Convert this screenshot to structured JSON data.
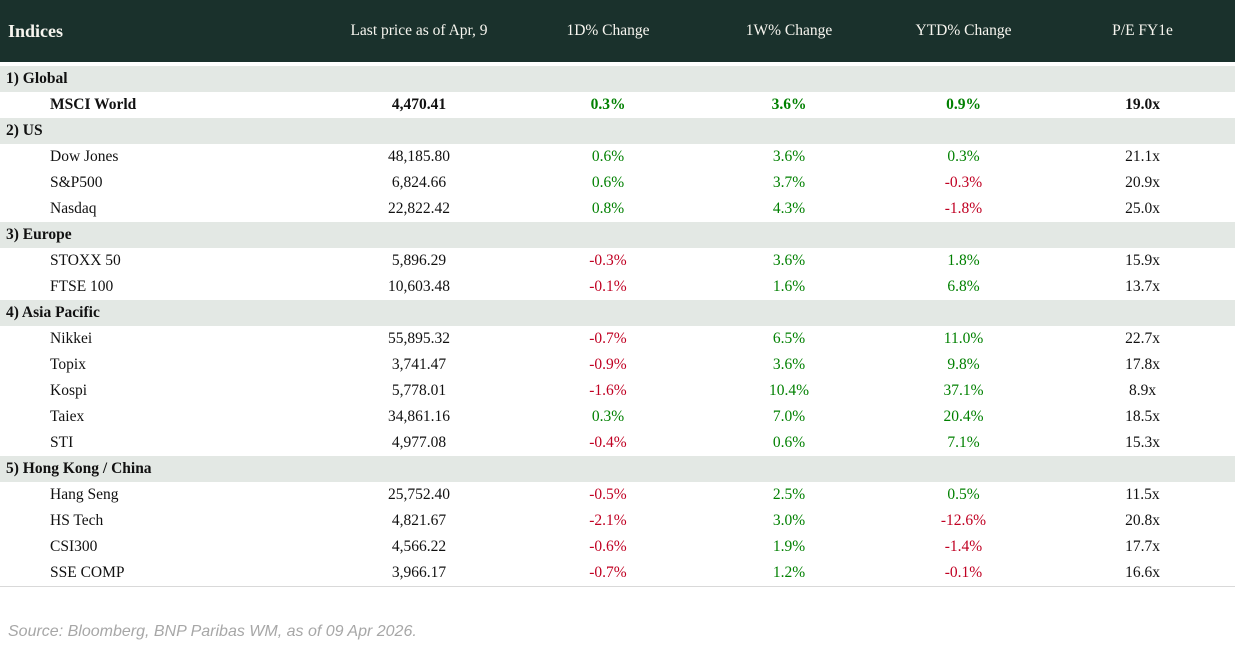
{
  "colors": {
    "header_bg": "#1a312c",
    "header_text": "#f7f5ef",
    "section_bg": "#e3e8e4",
    "positive": "#008000",
    "negative": "#c00022",
    "text": "#111111",
    "footer_text": "#a7a7a7",
    "divider": "#d9d9d9"
  },
  "footer": {
    "source": "Source: Bloomberg, BNP Paribas WM, as of 09 Apr 2026."
  },
  "chart_data": {
    "type": "table",
    "title": "Indices",
    "columns": [
      "Indices",
      "Last price as of Apr, 9",
      "1D% Change",
      "1W% Change",
      "YTD% Change",
      "P/E FY1e"
    ],
    "sections": [
      {
        "label": "1) Global",
        "rows": [
          {
            "name": "MSCI World",
            "bold": true,
            "values": [
              "4,470.41",
              "0.3%",
              "3.6%",
              "0.9%",
              "19.0x"
            ]
          }
        ]
      },
      {
        "label": "2) US",
        "rows": [
          {
            "name": "Dow Jones",
            "values": [
              "48,185.80",
              "0.6%",
              "3.6%",
              "0.3%",
              "21.1x"
            ]
          },
          {
            "name": "S&P500",
            "values": [
              "6,824.66",
              "0.6%",
              "3.7%",
              "-0.3%",
              "20.9x"
            ]
          },
          {
            "name": "Nasdaq",
            "values": [
              "22,822.42",
              "0.8%",
              "4.3%",
              "-1.8%",
              "25.0x"
            ]
          }
        ]
      },
      {
        "label": "3) Europe",
        "rows": [
          {
            "name": "STOXX 50",
            "values": [
              "5,896.29",
              "-0.3%",
              "3.6%",
              "1.8%",
              "15.9x"
            ]
          },
          {
            "name": "FTSE 100",
            "values": [
              "10,603.48",
              "-0.1%",
              "1.6%",
              "6.8%",
              "13.7x"
            ]
          }
        ]
      },
      {
        "label": "4) Asia Pacific",
        "rows": [
          {
            "name": "Nikkei",
            "values": [
              "55,895.32",
              "-0.7%",
              "6.5%",
              "11.0%",
              "22.7x"
            ]
          },
          {
            "name": "Topix",
            "values": [
              "3,741.47",
              "-0.9%",
              "3.6%",
              "9.8%",
              "17.8x"
            ]
          },
          {
            "name": "Kospi",
            "values": [
              "5,778.01",
              "-1.6%",
              "10.4%",
              "37.1%",
              "8.9x"
            ]
          },
          {
            "name": "Taiex",
            "values": [
              "34,861.16",
              "0.3%",
              "7.0%",
              "20.4%",
              "18.5x"
            ]
          },
          {
            "name": "STI",
            "values": [
              "4,977.08",
              "-0.4%",
              "0.6%",
              "7.1%",
              "15.3x"
            ]
          }
        ]
      },
      {
        "label": "5) Hong Kong / China",
        "rows": [
          {
            "name": "Hang Seng",
            "values": [
              "25,752.40",
              "-0.5%",
              "2.5%",
              "0.5%",
              "11.5x"
            ]
          },
          {
            "name": "HS Tech",
            "values": [
              "4,821.67",
              "-2.1%",
              "3.0%",
              "-12.6%",
              "20.8x"
            ]
          },
          {
            "name": "CSI300",
            "values": [
              "4,566.22",
              "-0.6%",
              "1.9%",
              "-1.4%",
              "17.7x"
            ]
          },
          {
            "name": "SSE COMP",
            "values": [
              "3,966.17",
              "-0.7%",
              "1.2%",
              "-0.1%",
              "16.6x"
            ]
          }
        ]
      }
    ],
    "source": "Source: Bloomberg, BNP Paribas WM, as of 09 Apr 2026.",
    "layout": {
      "percent_color_rule": "negative=red, positive=green",
      "grid": "off"
    }
  }
}
